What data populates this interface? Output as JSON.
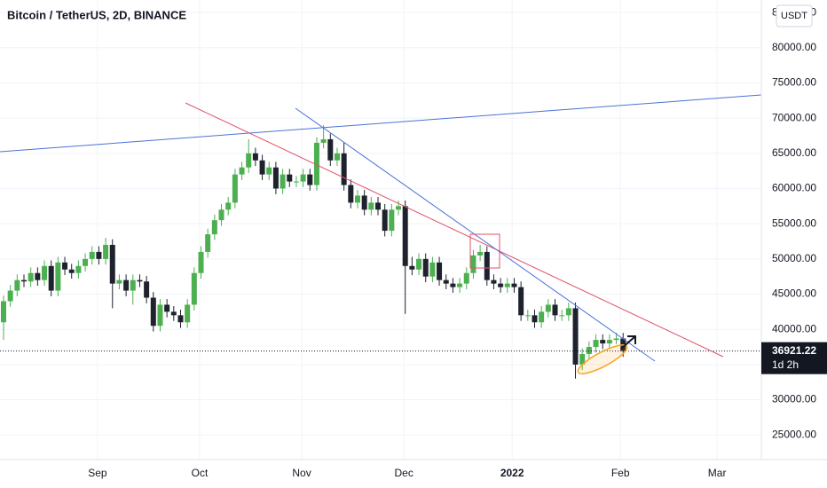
{
  "chart_data": {
    "type": "candlestick",
    "title": "Bitcoin / TetherUS, 2D, BINANCE",
    "currency": "USDT",
    "up_color": "#4caf50",
    "down_color": "#1e222d",
    "open": [
      41000,
      44000,
      45500,
      47000,
      46800,
      48000,
      47000,
      49000,
      45500,
      49500,
      48500,
      48000,
      49000,
      50000,
      51000,
      50000,
      52000,
      46500,
      47000,
      45500,
      47000,
      46800,
      44500,
      40500,
      43500,
      42500,
      42000,
      41000,
      43500,
      48000,
      51000,
      53500,
      55500,
      57000,
      58000,
      62000,
      63000,
      65000,
      64000,
      62000,
      63000,
      60000,
      62000,
      61000,
      61000,
      62000,
      60500,
      66500,
      67000,
      64000,
      65000,
      60500,
      58000,
      59000,
      57000,
      58000,
      57000,
      54000,
      57000,
      57500,
      49000,
      48500,
      50000,
      47500,
      49500,
      47000,
      46500,
      46000,
      46500,
      48000,
      50500,
      51000,
      47000,
      46500,
      46000,
      46500,
      46000,
      42000,
      42000,
      41000,
      42500,
      43500,
      42000,
      42000,
      43000,
      35000,
      36500,
      37500,
      38500,
      38000,
      38500,
      38700
    ],
    "high": [
      44800,
      46300,
      47800,
      47800,
      48800,
      48800,
      49800,
      49800,
      50300,
      50300,
      49300,
      49800,
      50800,
      51800,
      51800,
      53000,
      52800,
      47800,
      47800,
      47800,
      47800,
      47600,
      45300,
      44300,
      44300,
      43300,
      42800,
      44300,
      48800,
      51800,
      54300,
      56300,
      57800,
      58800,
      62800,
      63800,
      67000,
      65800,
      64800,
      63800,
      63800,
      62800,
      62800,
      61800,
      62800,
      62800,
      67300,
      69000,
      67800,
      65800,
      66500,
      61300,
      59800,
      59800,
      58800,
      58800,
      57800,
      57800,
      58300,
      58300,
      50300,
      50800,
      50800,
      50300,
      50300,
      47800,
      47300,
      47300,
      48800,
      51300,
      52000,
      51800,
      47800,
      47300,
      47300,
      47300,
      46800,
      42800,
      42800,
      43300,
      44300,
      44300,
      42800,
      43800,
      43800,
      37300,
      38300,
      39300,
      39300,
      39300,
      39500,
      39500
    ],
    "low": [
      38500,
      43200,
      44700,
      46000,
      46000,
      46200,
      46200,
      44700,
      44700,
      47700,
      47200,
      47200,
      48200,
      49200,
      49200,
      49200,
      43000,
      45700,
      44700,
      43500,
      46000,
      43700,
      39700,
      39700,
      41700,
      41200,
      40200,
      40200,
      42700,
      47200,
      50200,
      52700,
      54700,
      56200,
      57200,
      61200,
      62200,
      63200,
      61200,
      61200,
      59200,
      59200,
      60200,
      60200,
      60200,
      59700,
      59700,
      65700,
      63200,
      63200,
      59700,
      57200,
      57200,
      56200,
      56200,
      56200,
      53200,
      53200,
      56200,
      42200,
      47700,
      47700,
      46700,
      46700,
      46200,
      45700,
      45200,
      45200,
      45700,
      47200,
      49700,
      46200,
      45700,
      45200,
      45200,
      45200,
      41200,
      41200,
      40200,
      40200,
      41700,
      41200,
      41200,
      41200,
      33000,
      34200,
      35700,
      36700,
      37200,
      37200,
      37900,
      36100
    ],
    "close": [
      44000,
      45500,
      47000,
      46800,
      48000,
      47000,
      49000,
      45500,
      49500,
      48500,
      48000,
      49000,
      50000,
      51000,
      50000,
      52000,
      46500,
      47000,
      45500,
      47000,
      46800,
      44500,
      40500,
      43500,
      42500,
      42000,
      41000,
      43500,
      48000,
      51000,
      53500,
      55500,
      57000,
      58000,
      62000,
      63000,
      65000,
      64000,
      62000,
      63000,
      60000,
      62000,
      61000,
      61000,
      62000,
      60500,
      66500,
      67000,
      64000,
      65000,
      60500,
      58000,
      59000,
      57000,
      58000,
      57000,
      54000,
      57000,
      57500,
      49000,
      48500,
      50000,
      47500,
      49500,
      47000,
      46500,
      46000,
      46500,
      48000,
      50500,
      51000,
      47000,
      46500,
      46000,
      46500,
      46000,
      42000,
      42000,
      41000,
      42500,
      43500,
      42000,
      42000,
      43000,
      35000,
      36500,
      37500,
      38500,
      38000,
      38500,
      38700,
      36921.22
    ],
    "last_price": 36921.22,
    "countdown": "1d 2h",
    "xlim": [
      -0.52,
      111.3
    ],
    "xticks": [
      {
        "value": 13.8,
        "label": "Sep"
      },
      {
        "value": 28.8,
        "label": "Oct"
      },
      {
        "value": 43.8,
        "label": "Nov"
      },
      {
        "value": 58.8,
        "label": "Dec"
      },
      {
        "value": 74.7,
        "label": "2022"
      },
      {
        "value": 90.6,
        "label": "Feb"
      },
      {
        "value": 104.8,
        "label": "Mar"
      }
    ],
    "ylim": [
      21500,
      86780
    ],
    "yticks": [
      {
        "value": 25000,
        "label": "25000.00"
      },
      {
        "value": 30000,
        "label": "30000.00"
      },
      {
        "value": 35000,
        "label": "35000.00"
      },
      {
        "value": 40000,
        "label": "40000.00"
      },
      {
        "value": 45000,
        "label": "45000.00"
      },
      {
        "value": 50000,
        "label": "50000.00"
      },
      {
        "value": 55000,
        "label": "55000.00"
      },
      {
        "value": 60000,
        "label": "60000.00"
      },
      {
        "value": 65000,
        "label": "65000.00"
      },
      {
        "value": 70000,
        "label": "70000.00"
      },
      {
        "value": 75000,
        "label": "75000.00"
      },
      {
        "value": 80000,
        "label": "80000.00"
      },
      {
        "value": 85000,
        "label": "85000.00"
      }
    ]
  }
}
